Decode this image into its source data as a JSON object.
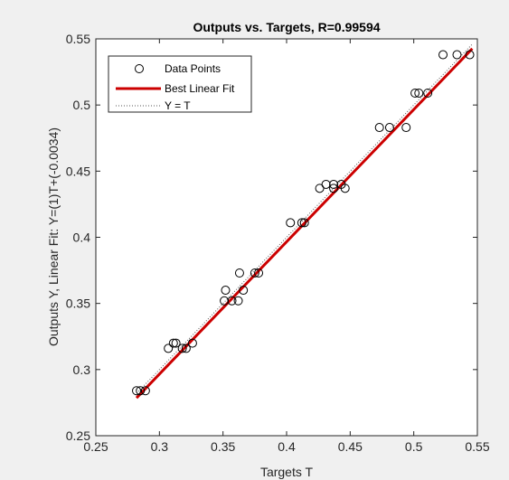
{
  "chart_data": {
    "type": "scatter",
    "title": "Outputs vs. Targets, R=0.99594",
    "xlabel": "Targets T",
    "ylabel": "Outputs Y,  Linear Fit: Y=(1)T+(-0.0034)",
    "xlim": [
      0.25,
      0.55
    ],
    "ylim": [
      0.25,
      0.55
    ],
    "xticks": [
      "0.25",
      "0.3",
      "0.35",
      "0.4",
      "0.45",
      "0.5",
      "0.55"
    ],
    "yticks": [
      "0.25",
      "0.3",
      "0.35",
      "0.4",
      "0.45",
      "0.5",
      "0.55"
    ],
    "grid": false,
    "legend_position": "top-left",
    "legend": [
      {
        "label": "Data Points",
        "style": "circle-marker",
        "color": "#000000"
      },
      {
        "label": "Best Linear Fit",
        "style": "solid-line",
        "color": "#cc0000"
      },
      {
        "label": "Y = T",
        "style": "dotted-line",
        "color": "#555555"
      }
    ],
    "points": {
      "x": [
        0.282,
        0.285,
        0.289,
        0.307,
        0.311,
        0.313,
        0.318,
        0.321,
        0.326,
        0.351,
        0.352,
        0.357,
        0.362,
        0.363,
        0.366,
        0.375,
        0.378,
        0.403,
        0.412,
        0.414,
        0.426,
        0.431,
        0.437,
        0.437,
        0.443,
        0.446,
        0.473,
        0.481,
        0.494,
        0.501,
        0.504,
        0.511,
        0.523,
        0.534,
        0.544
      ],
      "y": [
        0.284,
        0.284,
        0.284,
        0.316,
        0.32,
        0.32,
        0.316,
        0.316,
        0.32,
        0.352,
        0.36,
        0.352,
        0.352,
        0.373,
        0.36,
        0.373,
        0.373,
        0.411,
        0.411,
        0.411,
        0.437,
        0.44,
        0.437,
        0.44,
        0.44,
        0.437,
        0.483,
        0.483,
        0.483,
        0.509,
        0.509,
        0.509,
        0.538,
        0.538,
        0.538
      ]
    },
    "fit_line": {
      "slope": 1,
      "intercept": -0.0034,
      "x_range": [
        0.282,
        0.546
      ],
      "color": "#cc0000"
    },
    "identity_line": {
      "x_range": [
        0.282,
        0.546
      ],
      "color": "#555555"
    }
  }
}
